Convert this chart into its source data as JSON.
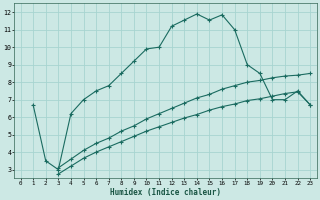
{
  "title": "",
  "xlabel": "Humidex (Indice chaleur)",
  "ylabel": "",
  "bg_color": "#cce8e4",
  "grid_color": "#a8d4d0",
  "line_color": "#1a6b60",
  "xlim": [
    -0.5,
    23.5
  ],
  "ylim": [
    2.5,
    12.5
  ],
  "yticks": [
    3,
    4,
    5,
    6,
    7,
    8,
    9,
    10,
    11,
    12
  ],
  "xticks": [
    0,
    1,
    2,
    3,
    4,
    5,
    6,
    7,
    8,
    9,
    10,
    11,
    12,
    13,
    14,
    15,
    16,
    17,
    18,
    19,
    20,
    21,
    22,
    23
  ],
  "line1_x": [
    1,
    2,
    3,
    4,
    5,
    6,
    7,
    8,
    9,
    10,
    11,
    12,
    13,
    14,
    15,
    16,
    17,
    18,
    19,
    20,
    21,
    22,
    23
  ],
  "line1_y": [
    6.7,
    3.5,
    3.0,
    6.2,
    7.0,
    7.5,
    7.8,
    8.5,
    9.2,
    9.9,
    10.0,
    11.2,
    11.55,
    11.9,
    11.55,
    11.85,
    11.0,
    9.0,
    8.5,
    7.0,
    7.0,
    7.5,
    6.7
  ],
  "line2_x": [
    3,
    4,
    5,
    6,
    7,
    8,
    9,
    10,
    11,
    12,
    13,
    14,
    15,
    16,
    17,
    18,
    19,
    20,
    21,
    22,
    23
  ],
  "line2_y": [
    3.1,
    3.6,
    4.1,
    4.5,
    4.8,
    5.2,
    5.5,
    5.9,
    6.2,
    6.5,
    6.8,
    7.1,
    7.3,
    7.6,
    7.8,
    8.0,
    8.1,
    8.25,
    8.35,
    8.4,
    8.5
  ],
  "line3_x": [
    3,
    4,
    5,
    6,
    7,
    8,
    9,
    10,
    11,
    12,
    13,
    14,
    15,
    16,
    17,
    18,
    19,
    20,
    21,
    22,
    23
  ],
  "line3_y": [
    2.75,
    3.2,
    3.65,
    4.0,
    4.3,
    4.6,
    4.9,
    5.2,
    5.45,
    5.7,
    5.95,
    6.15,
    6.4,
    6.6,
    6.75,
    6.95,
    7.05,
    7.2,
    7.35,
    7.45,
    6.7
  ]
}
